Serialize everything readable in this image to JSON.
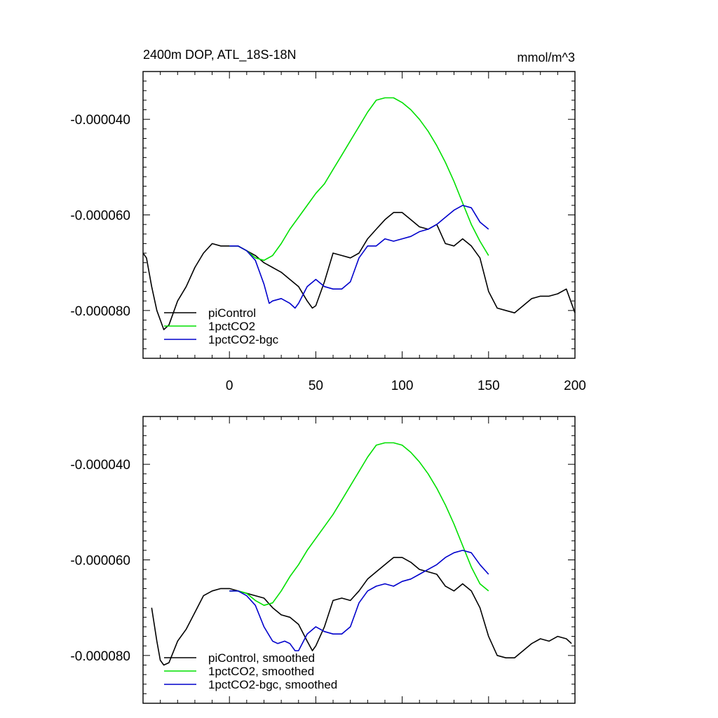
{
  "figure": {
    "title": "2400m DOP, ATL_18S-18N",
    "units": "mmol/m^3"
  },
  "chart_data": [
    {
      "type": "line",
      "title": "2400m DOP, ATL_18S-18N",
      "units": "mmol/m^3",
      "xlim": [
        -50,
        200
      ],
      "ylim": [
        -9e-05,
        -3e-05
      ],
      "x_ticks": [
        0,
        50,
        100,
        150,
        200
      ],
      "x_tick_labels": [
        "0",
        "50",
        "100",
        "150",
        "200"
      ],
      "y_ticks": [
        -4e-05,
        -6e-05,
        -8e-05
      ],
      "y_tick_labels": [
        "-0.000040",
        "-0.000060",
        "-0.000080"
      ],
      "grid": false,
      "legend_position": "bottom-left",
      "series": [
        {
          "name": "piControl",
          "color": "#000000",
          "x": [
            -50,
            -48,
            -45,
            -42,
            -38,
            -35,
            -30,
            -25,
            -20,
            -15,
            -10,
            -5,
            0,
            5,
            10,
            15,
            20,
            25,
            30,
            35,
            40,
            45,
            48,
            50,
            55,
            60,
            65,
            70,
            75,
            80,
            85,
            90,
            95,
            100,
            105,
            110,
            115,
            120,
            125,
            130,
            135,
            140,
            145,
            150,
            155,
            160,
            165,
            170,
            175,
            180,
            185,
            190,
            195,
            200
          ],
          "y": [
            -6.8e-05,
            -6.9e-05,
            -7.5e-05,
            -8e-05,
            -8.4e-05,
            -8.3e-05,
            -7.8e-05,
            -7.5e-05,
            -7.1e-05,
            -6.8e-05,
            -6.6e-05,
            -6.65e-05,
            -6.65e-05,
            -6.65e-05,
            -6.75e-05,
            -6.85e-05,
            -7e-05,
            -7.1e-05,
            -7.2e-05,
            -7.35e-05,
            -7.5e-05,
            -7.8e-05,
            -7.95e-05,
            -7.9e-05,
            -7.4e-05,
            -6.8e-05,
            -6.85e-05,
            -6.9e-05,
            -6.8e-05,
            -6.5e-05,
            -6.3e-05,
            -6.1e-05,
            -5.95e-05,
            -5.95e-05,
            -6.1e-05,
            -6.25e-05,
            -6.3e-05,
            -6.2e-05,
            -6.6e-05,
            -6.65e-05,
            -6.5e-05,
            -6.65e-05,
            -6.9e-05,
            -7.6e-05,
            -7.95e-05,
            -8e-05,
            -8.05e-05,
            -7.9e-05,
            -7.75e-05,
            -7.7e-05,
            -7.7e-05,
            -7.65e-05,
            -7.55e-05,
            -8.05e-05
          ]
        },
        {
          "name": "1pctCO2",
          "color": "#00e000",
          "x": [
            0,
            5,
            10,
            15,
            20,
            25,
            30,
            35,
            40,
            45,
            50,
            55,
            60,
            65,
            70,
            75,
            80,
            85,
            90,
            95,
            100,
            105,
            110,
            115,
            120,
            125,
            130,
            135,
            140,
            145,
            150
          ],
          "y": [
            -6.65e-05,
            -6.65e-05,
            -6.75e-05,
            -6.9e-05,
            -6.95e-05,
            -6.85e-05,
            -6.6e-05,
            -6.3e-05,
            -6.05e-05,
            -5.8e-05,
            -5.55e-05,
            -5.35e-05,
            -5.05e-05,
            -4.75e-05,
            -4.45e-05,
            -4.15e-05,
            -3.85e-05,
            -3.6e-05,
            -3.55e-05,
            -3.55e-05,
            -3.65e-05,
            -3.8e-05,
            -4e-05,
            -4.25e-05,
            -4.55e-05,
            -4.9e-05,
            -5.3e-05,
            -5.75e-05,
            -6.2e-05,
            -6.55e-05,
            -6.85e-05
          ]
        },
        {
          "name": "1pctCO2-bgc",
          "color": "#0000cc",
          "x": [
            0,
            5,
            10,
            15,
            20,
            23,
            25,
            30,
            35,
            38,
            40,
            45,
            50,
            55,
            60,
            65,
            70,
            75,
            80,
            85,
            90,
            95,
            100,
            105,
            110,
            115,
            120,
            125,
            130,
            135,
            140,
            145,
            150
          ],
          "y": [
            -6.65e-05,
            -6.65e-05,
            -6.75e-05,
            -6.95e-05,
            -7.45e-05,
            -7.85e-05,
            -7.8e-05,
            -7.75e-05,
            -7.85e-05,
            -7.95e-05,
            -7.85e-05,
            -7.5e-05,
            -7.35e-05,
            -7.5e-05,
            -7.55e-05,
            -7.55e-05,
            -7.4e-05,
            -6.9e-05,
            -6.65e-05,
            -6.65e-05,
            -6.5e-05,
            -6.55e-05,
            -6.5e-05,
            -6.45e-05,
            -6.35e-05,
            -6.3e-05,
            -6.2e-05,
            -6.05e-05,
            -5.9e-05,
            -5.8e-05,
            -5.85e-05,
            -6.15e-05,
            -6.3e-05
          ]
        }
      ]
    },
    {
      "type": "line",
      "xlim": [
        -50,
        200
      ],
      "ylim": [
        -9e-05,
        -3e-05
      ],
      "x_ticks": [
        0,
        50,
        100,
        150,
        200
      ],
      "y_ticks": [
        -4e-05,
        -6e-05,
        -8e-05
      ],
      "y_tick_labels": [
        "-0.000040",
        "-0.000060",
        "-0.000080"
      ],
      "grid": false,
      "legend_position": "bottom-left",
      "series": [
        {
          "name": "piControl, smoothed",
          "color": "#000000",
          "x": [
            -45,
            -42,
            -40,
            -38,
            -35,
            -30,
            -25,
            -20,
            -15,
            -10,
            -5,
            0,
            5,
            10,
            15,
            20,
            25,
            30,
            35,
            40,
            45,
            48,
            50,
            55,
            60,
            65,
            70,
            75,
            80,
            85,
            90,
            95,
            100,
            105,
            110,
            115,
            120,
            125,
            130,
            135,
            140,
            145,
            150,
            155,
            160,
            165,
            170,
            175,
            180,
            185,
            190,
            195,
            198
          ],
          "y": [
            -7e-05,
            -7.7e-05,
            -8.1e-05,
            -8.2e-05,
            -8.15e-05,
            -7.7e-05,
            -7.45e-05,
            -7.1e-05,
            -6.75e-05,
            -6.65e-05,
            -6.6e-05,
            -6.6e-05,
            -6.65e-05,
            -6.7e-05,
            -6.75e-05,
            -6.8e-05,
            -7e-05,
            -7.15e-05,
            -7.2e-05,
            -7.35e-05,
            -7.7e-05,
            -7.9e-05,
            -7.8e-05,
            -7.4e-05,
            -6.85e-05,
            -6.8e-05,
            -6.85e-05,
            -6.65e-05,
            -6.4e-05,
            -6.25e-05,
            -6.1e-05,
            -5.95e-05,
            -5.95e-05,
            -6.05e-05,
            -6.2e-05,
            -6.25e-05,
            -6.3e-05,
            -6.55e-05,
            -6.65e-05,
            -6.5e-05,
            -6.65e-05,
            -7e-05,
            -7.6e-05,
            -8e-05,
            -8.05e-05,
            -8.05e-05,
            -7.9e-05,
            -7.75e-05,
            -7.65e-05,
            -7.7e-05,
            -7.6e-05,
            -7.65e-05,
            -7.75e-05
          ]
        },
        {
          "name": "1pctCO2, smoothed",
          "color": "#00e000",
          "x": [
            0,
            5,
            10,
            15,
            20,
            25,
            30,
            35,
            40,
            45,
            50,
            55,
            60,
            65,
            70,
            75,
            80,
            85,
            90,
            95,
            100,
            105,
            110,
            115,
            120,
            125,
            130,
            135,
            140,
            145,
            150
          ],
          "y": [
            -6.65e-05,
            -6.65e-05,
            -6.7e-05,
            -6.85e-05,
            -6.95e-05,
            -6.9e-05,
            -6.65e-05,
            -6.35e-05,
            -6.1e-05,
            -5.8e-05,
            -5.55e-05,
            -5.3e-05,
            -5.05e-05,
            -4.75e-05,
            -4.45e-05,
            -4.15e-05,
            -3.85e-05,
            -3.6e-05,
            -3.55e-05,
            -3.55e-05,
            -3.6e-05,
            -3.75e-05,
            -3.95e-05,
            -4.2e-05,
            -4.5e-05,
            -4.85e-05,
            -5.25e-05,
            -5.7e-05,
            -6.15e-05,
            -6.5e-05,
            -6.65e-05
          ]
        },
        {
          "name": "1pctCO2-bgc, smoothed",
          "color": "#0000cc",
          "x": [
            0,
            5,
            10,
            15,
            20,
            25,
            28,
            32,
            35,
            38,
            40,
            45,
            50,
            55,
            60,
            65,
            70,
            75,
            80,
            85,
            90,
            95,
            100,
            105,
            110,
            115,
            120,
            125,
            130,
            135,
            140,
            145,
            150
          ],
          "y": [
            -6.65e-05,
            -6.65e-05,
            -6.75e-05,
            -6.95e-05,
            -7.4e-05,
            -7.7e-05,
            -7.75e-05,
            -7.7e-05,
            -7.75e-05,
            -7.9e-05,
            -7.9e-05,
            -7.55e-05,
            -7.4e-05,
            -7.5e-05,
            -7.55e-05,
            -7.55e-05,
            -7.4e-05,
            -6.9e-05,
            -6.65e-05,
            -6.55e-05,
            -6.5e-05,
            -6.55e-05,
            -6.45e-05,
            -6.4e-05,
            -6.3e-05,
            -6.2e-05,
            -6.1e-05,
            -5.95e-05,
            -5.85e-05,
            -5.8e-05,
            -5.85e-05,
            -6.1e-05,
            -6.3e-05
          ]
        }
      ]
    }
  ]
}
